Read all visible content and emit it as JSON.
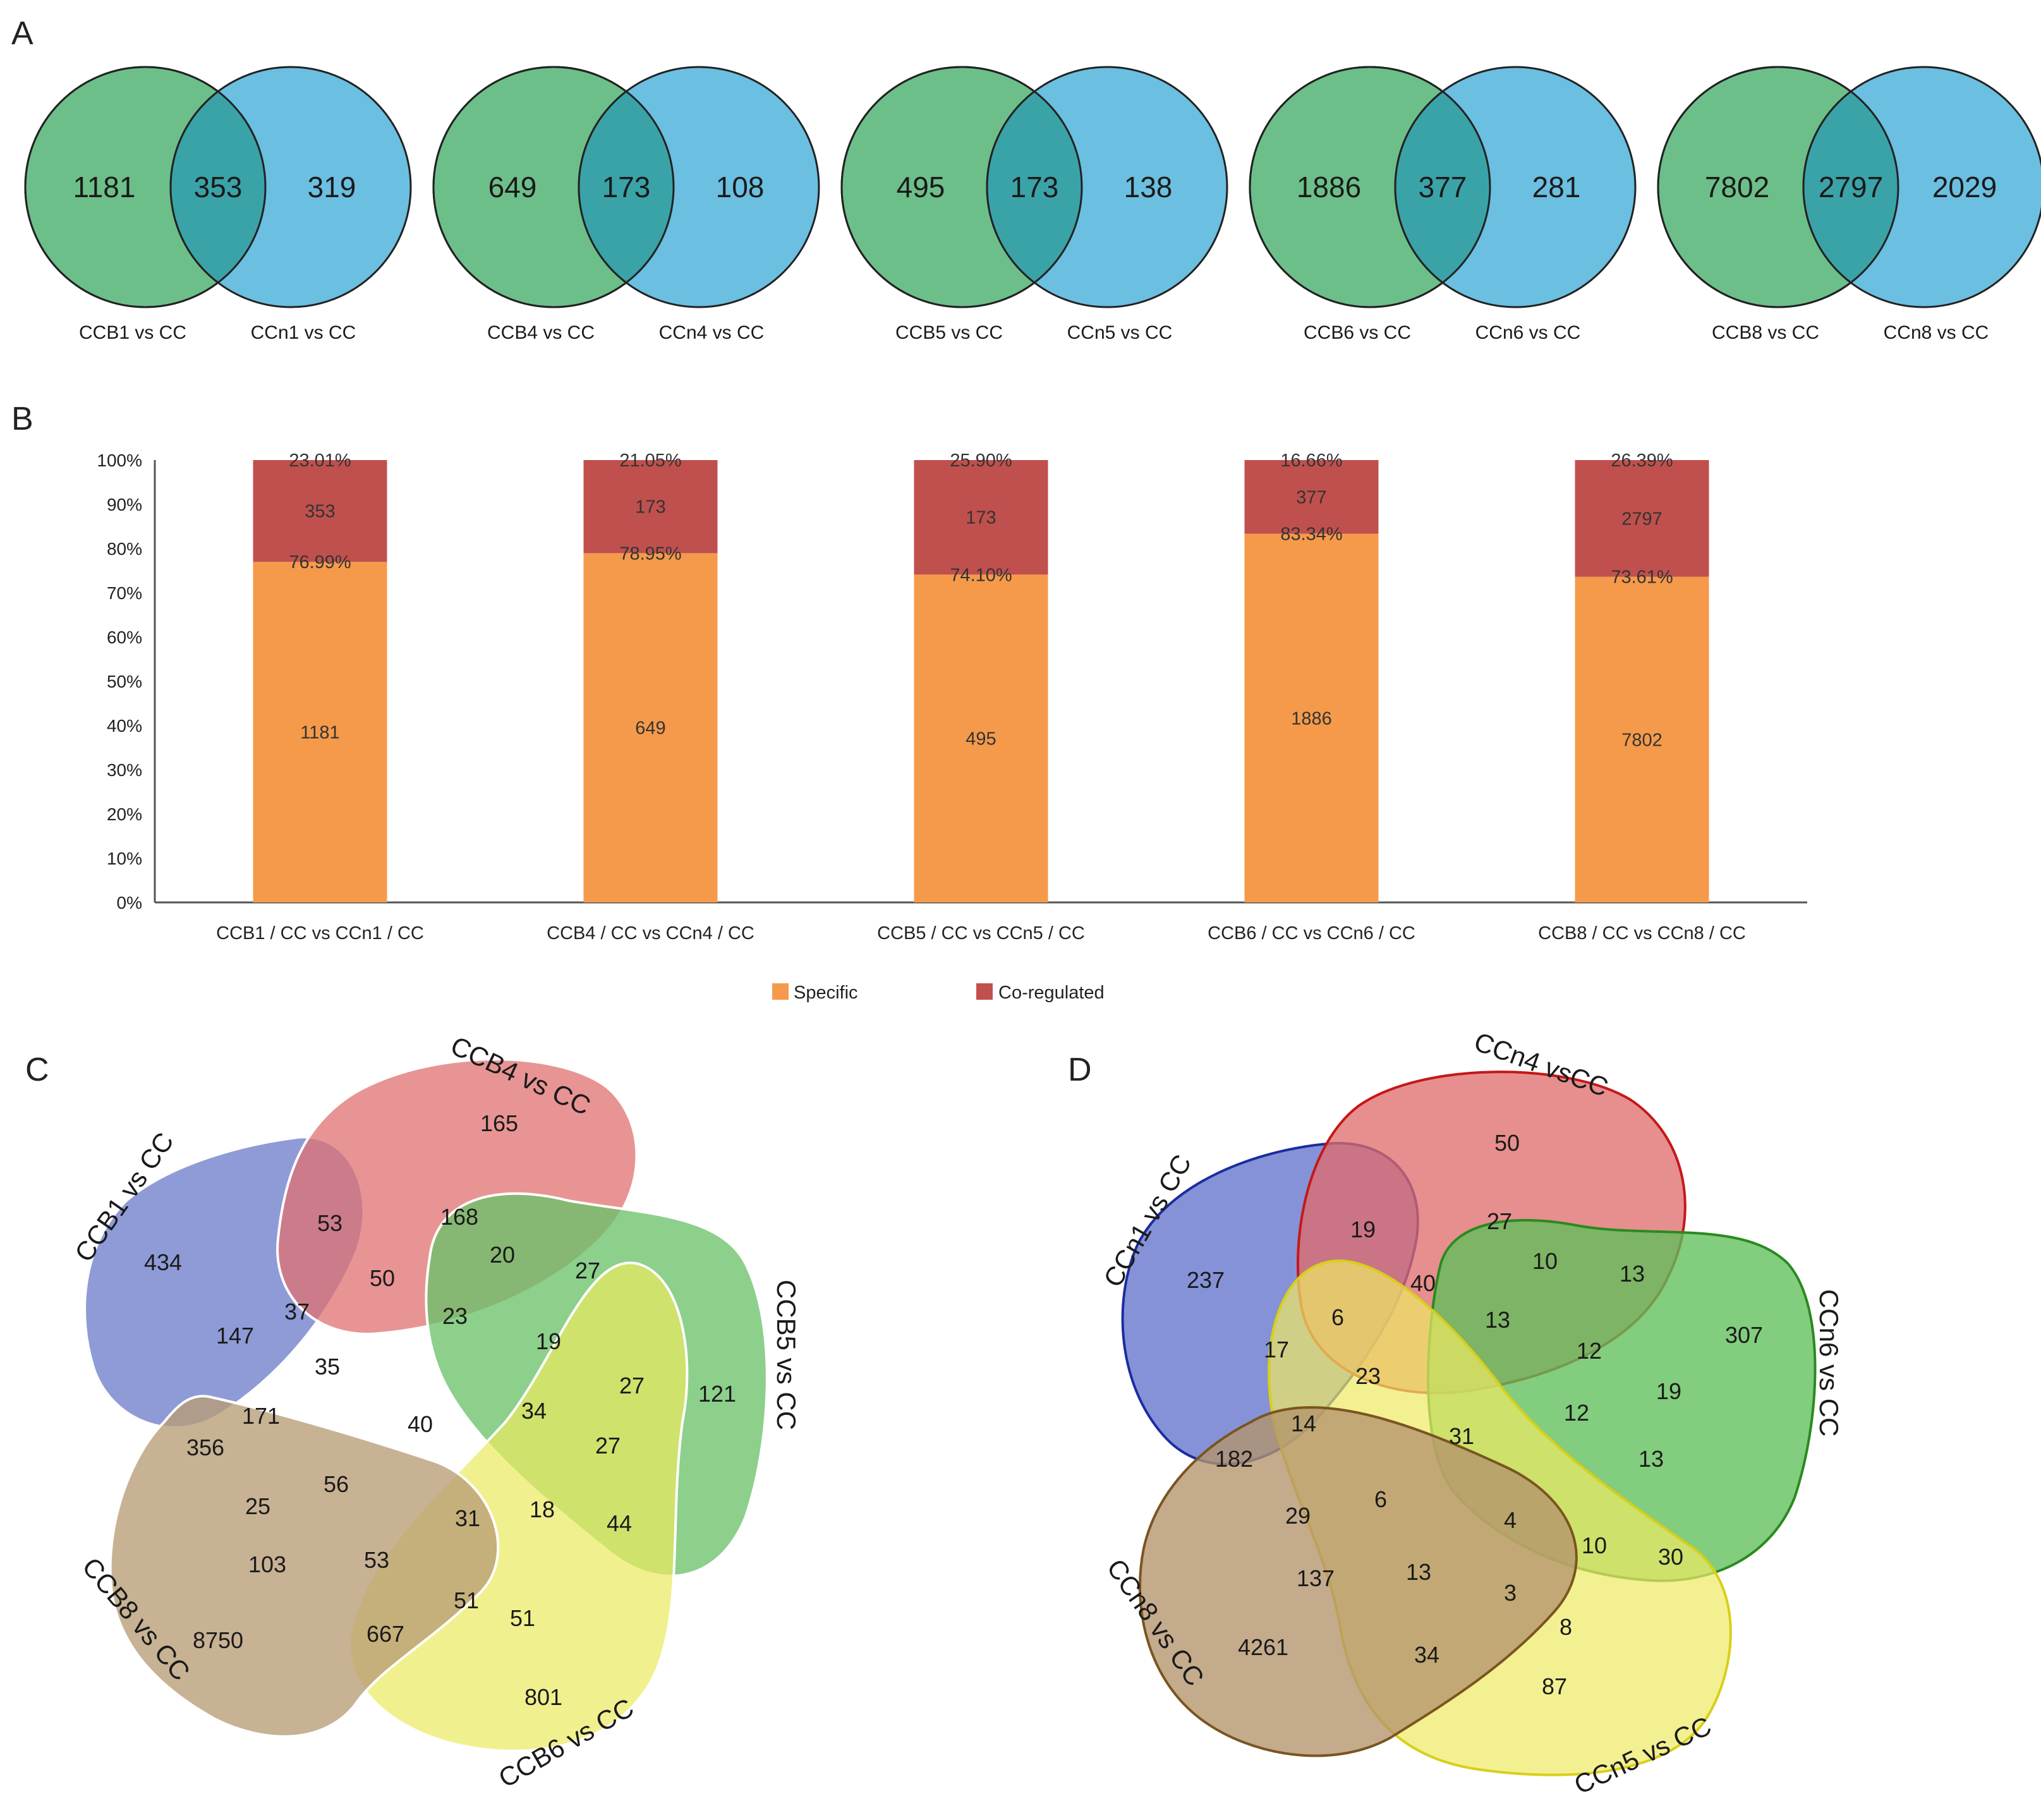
{
  "panels": {
    "a": "A",
    "b": "B",
    "c": "C",
    "d": "D"
  },
  "colors": {
    "green": "#6dbf8a",
    "blue": "#6bbfe0",
    "overlap": "#3aa3a8",
    "orange": "#f59a4a",
    "red": "#c0504d"
  },
  "chart_data": [
    {
      "type": "venn",
      "panel": "A",
      "pairs": [
        {
          "left_label": "CCB1 vs CC",
          "right_label": "CCn1 vs CC",
          "left_only": "1181",
          "overlap": "353",
          "right_only": "319"
        },
        {
          "left_label": "CCB4 vs CC",
          "right_label": "CCn4 vs CC",
          "left_only": "649",
          "overlap": "173",
          "right_only": "108"
        },
        {
          "left_label": "CCB5 vs CC",
          "right_label": "CCn5 vs CC",
          "left_only": "495",
          "overlap": "173",
          "right_only": "138"
        },
        {
          "left_label": "CCB6 vs CC",
          "right_label": "CCn6 vs CC",
          "left_only": "1886",
          "overlap": "377",
          "right_only": "281"
        },
        {
          "left_label": "CCB8 vs CC",
          "right_label": "CCn8 vs CC",
          "left_only": "7802",
          "overlap": "2797",
          "right_only": "2029"
        }
      ]
    },
    {
      "type": "bar",
      "stacked": true,
      "panel": "B",
      "categories": [
        "CCB1 / CC vs CCn1 / CC",
        "CCB4 / CC vs CCn4 / CC",
        "CCB5 / CC vs CCn5 / CC",
        "CCB6 / CC vs CCn6 / CC",
        "CCB8 / CC vs CCn8 / CC"
      ],
      "ylim": [
        0,
        100
      ],
      "yticks": [
        "0%",
        "10%",
        "20%",
        "30%",
        "40%",
        "50%",
        "60%",
        "70%",
        "80%",
        "90%",
        "100%"
      ],
      "series": [
        {
          "name": "Specific",
          "values": [
            76.99,
            78.95,
            74.1,
            83.34,
            73.61
          ],
          "percent_labels": [
            "76.99%",
            "78.95%",
            "74.10%",
            "83.34%",
            "73.61%"
          ],
          "count_labels": [
            "1181",
            "649",
            "495",
            "1886",
            "7802"
          ]
        },
        {
          "name": "Co-regulated",
          "values": [
            23.01,
            21.05,
            25.9,
            16.66,
            26.39
          ],
          "percent_labels": [
            "23.01%",
            "21.05%",
            "25.90%",
            "16.66%",
            "26.39%"
          ],
          "count_labels": [
            "353",
            "173",
            "173",
            "377",
            "2797"
          ]
        }
      ],
      "legend": [
        "Specific",
        "Co-regulated"
      ]
    },
    {
      "type": "venn",
      "panel": "C",
      "sets": [
        "CCB1 vs CC",
        "CCB4 vs CC",
        "CCB5 vs CC",
        "CCB6 vs CC",
        "CCB8 vs CC"
      ],
      "regions": [
        "434",
        "165",
        "121",
        "801",
        "8750",
        "53",
        "168",
        "20",
        "27",
        "37",
        "50",
        "147",
        "23",
        "19",
        "35",
        "27",
        "171",
        "40",
        "34",
        "27",
        "356",
        "56",
        "31",
        "18",
        "44",
        "25",
        "103",
        "53",
        "51",
        "51",
        "667"
      ]
    },
    {
      "type": "venn",
      "panel": "D",
      "sets": [
        "CCn1 vs CC",
        "CCn4 vsCC",
        "CCn6 vs CC",
        "CCn5 vs CC",
        "CCn8 vs CC"
      ],
      "regions": [
        "50",
        "237",
        "19",
        "27",
        "10",
        "13",
        "40",
        "6",
        "17",
        "13",
        "12",
        "307",
        "23",
        "14",
        "12",
        "19",
        "182",
        "31",
        "13",
        "6",
        "29",
        "4",
        "10",
        "30",
        "137",
        "13",
        "3",
        "8",
        "4261",
        "34",
        "87"
      ]
    }
  ]
}
